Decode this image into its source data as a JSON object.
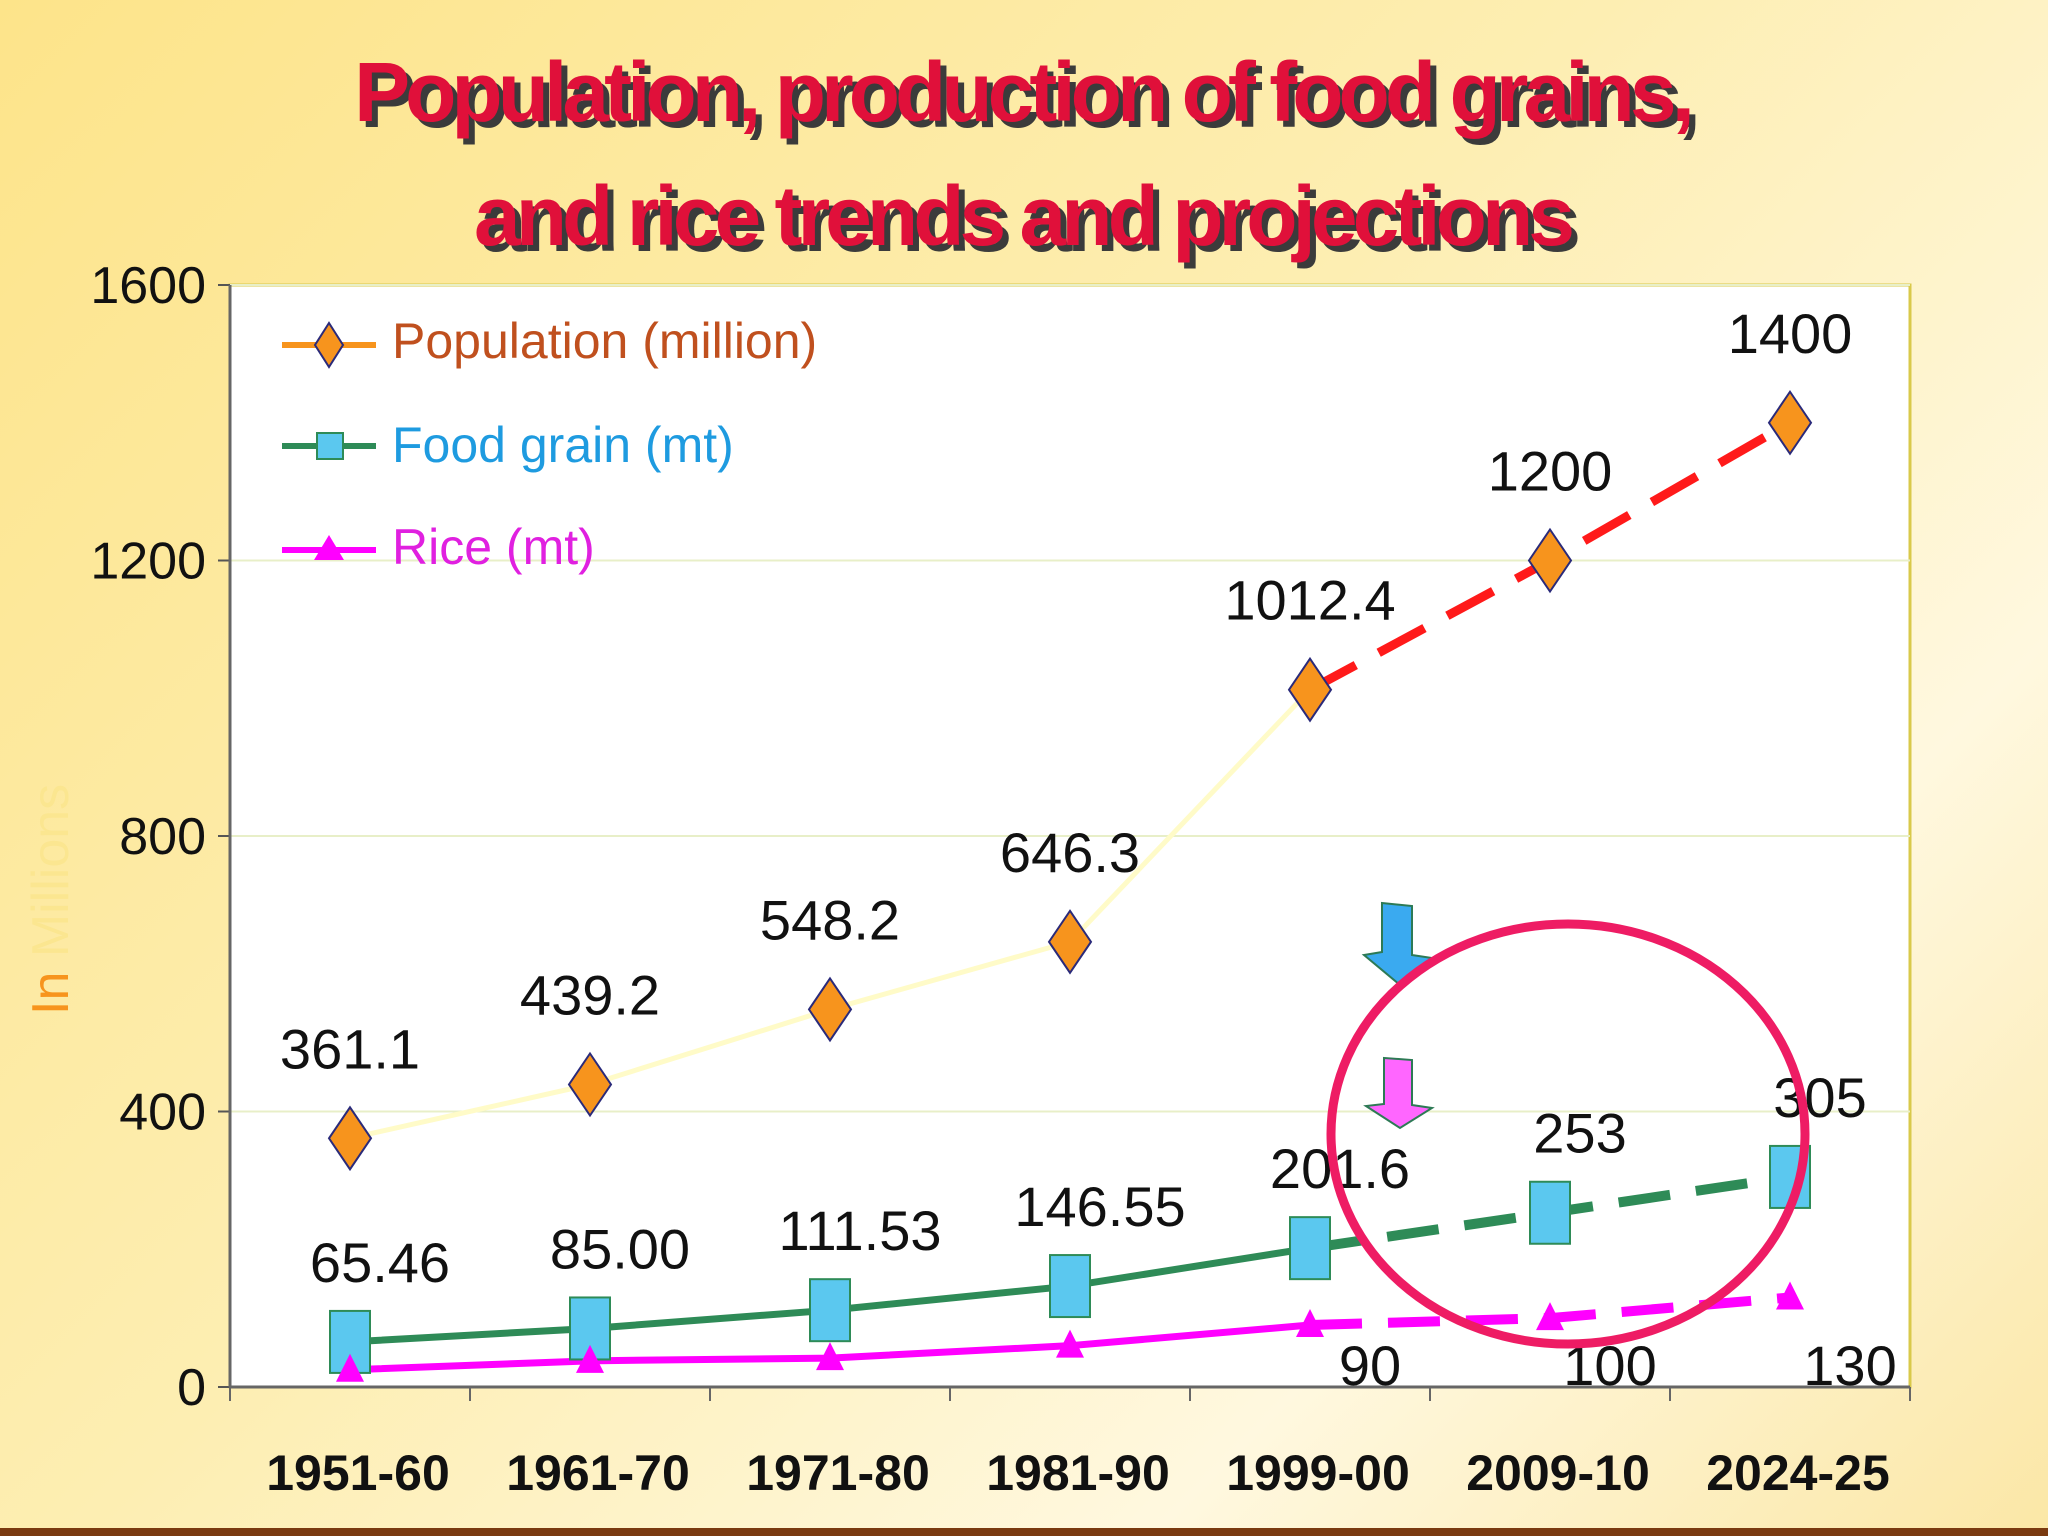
{
  "chart_data": {
    "type": "line",
    "title": "Population, production of food grains, and rice trends and projections",
    "title_lines": [
      "Population, production of food grains,",
      "and rice trends and projections"
    ],
    "ylabel": "In Millions",
    "xlabel": "",
    "ylim": [
      0,
      1600
    ],
    "yticks": [
      "0",
      "400",
      "800",
      "1200",
      "1600"
    ],
    "categories": [
      "1951-60",
      "1961-70",
      "1971-80",
      "1981-90",
      "1999-00",
      "2009-10",
      "2024-25"
    ],
    "actual_count": 5,
    "series": [
      {
        "name": "Population (million)",
        "values": [
          361.1,
          439.2,
          548.2,
          646.3,
          1012.4,
          1200,
          1400
        ],
        "labels": [
          "361.1",
          "439.2",
          "548.2",
          "646.3",
          "1012.4",
          "1200",
          "1400"
        ],
        "marker": "diamond",
        "line_color": "#fffbc8",
        "projection_color": "#ff1a1a",
        "marker_color": "#f7941d",
        "legend_color": "#f7941d",
        "legend_text_color": "#c0501e"
      },
      {
        "name": "Food grain (mt)",
        "values": [
          65.46,
          85.0,
          111.53,
          146.55,
          201.6,
          253,
          305
        ],
        "labels": [
          "65.46",
          "85.00",
          "111.53",
          "146.55",
          "201.6",
          "253",
          "305"
        ],
        "marker": "square",
        "line_color": "#2e8b57",
        "projection_color": "#2e8b57",
        "marker_color": "#5bc8ef",
        "legend_color": "#2e8b57",
        "legend_text_color": "#1e9be0"
      },
      {
        "name": "Rice (mt)",
        "values": [
          25,
          38,
          42,
          60,
          90,
          100,
          130
        ],
        "labels": [
          "",
          "",
          "",
          "",
          "90",
          "100",
          "130"
        ],
        "marker": "triangle",
        "line_color": "#ff00ff",
        "projection_color": "#ff00ff",
        "marker_color": "#ff00ff",
        "legend_color": "#ff00ff",
        "legend_text_color": "#e020e0"
      }
    ],
    "annotations": [
      {
        "type": "down-arrow",
        "color": "#3aaaf0",
        "description": "blue arrow pointing down toward food grain projection"
      },
      {
        "type": "down-arrow",
        "color": "#ff66ff",
        "description": "pink arrow pointing down toward rice projection"
      },
      {
        "type": "ellipse",
        "color": "#ee1c64",
        "description": "circle highlighting projected food grain and rice"
      }
    ]
  }
}
